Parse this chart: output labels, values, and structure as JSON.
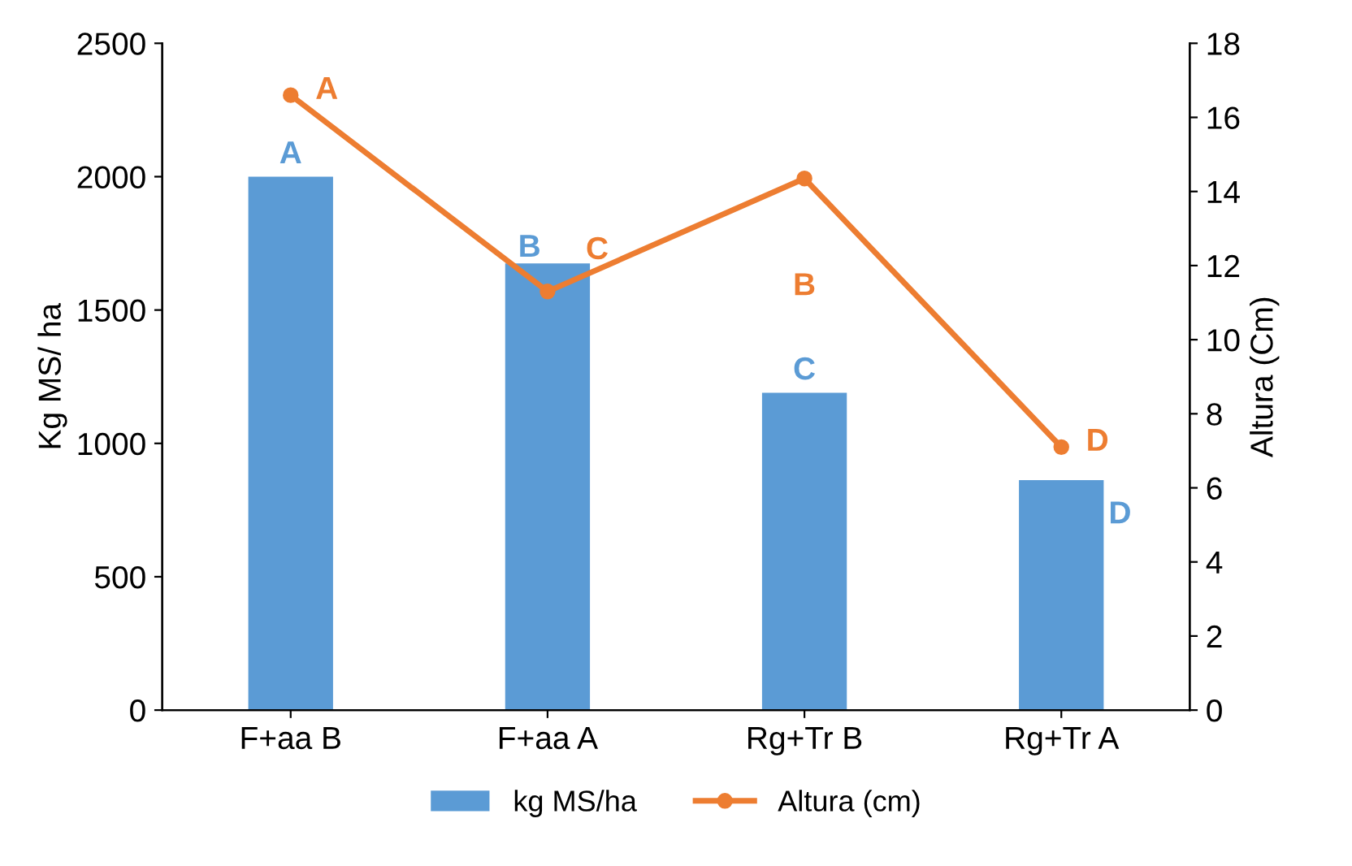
{
  "chart_data": {
    "type": "bar",
    "categories": [
      "F+aa B",
      "F+aa A",
      "Rg+Tr B",
      "Rg+Tr A"
    ],
    "series": [
      {
        "name": "kg MS/ha",
        "type": "bar",
        "color": "#5b9bd5",
        "values": [
          2000,
          1675,
          1190,
          862
        ],
        "value_labels": [
          "A",
          "B",
          "C",
          "D"
        ]
      },
      {
        "name": "Altura (cm)",
        "type": "line",
        "axis": "y2",
        "color": "#ed7d31",
        "values": [
          16.6,
          11.3,
          14.35,
          7.1
        ],
        "value_labels": [
          "A",
          "C",
          "B",
          "D"
        ]
      }
    ],
    "ylabel": "Kg MS/ ha",
    "y2label": "Altura (Cm)",
    "ylim": [
      0,
      2500
    ],
    "yticks": [
      0,
      500,
      1000,
      1500,
      2000,
      2500
    ],
    "y2lim": [
      0,
      18
    ],
    "y2ticks": [
      0,
      2,
      4,
      6,
      8,
      10,
      12,
      14,
      16,
      18
    ],
    "marker": "circle",
    "legend": "bottom",
    "grid": false
  }
}
